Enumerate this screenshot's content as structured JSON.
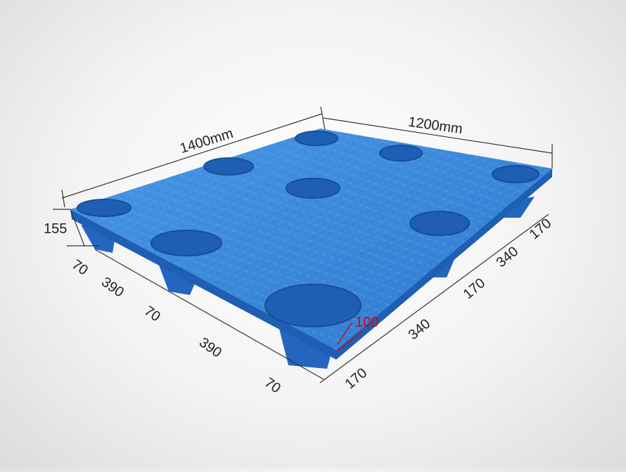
{
  "colors": {
    "pallet": "#3a86d8",
    "pallet_dark": "#1f5fb3",
    "dimension_line": "#333333",
    "highlight": "#e00000"
  },
  "dimensions": {
    "length": "1400mm",
    "width": "1200mm",
    "height": "155",
    "left_side": [
      "70",
      "390",
      "70",
      "390",
      "70"
    ],
    "right_side": [
      "170",
      "340",
      "170",
      "340",
      "170"
    ],
    "foot_width": "100"
  }
}
